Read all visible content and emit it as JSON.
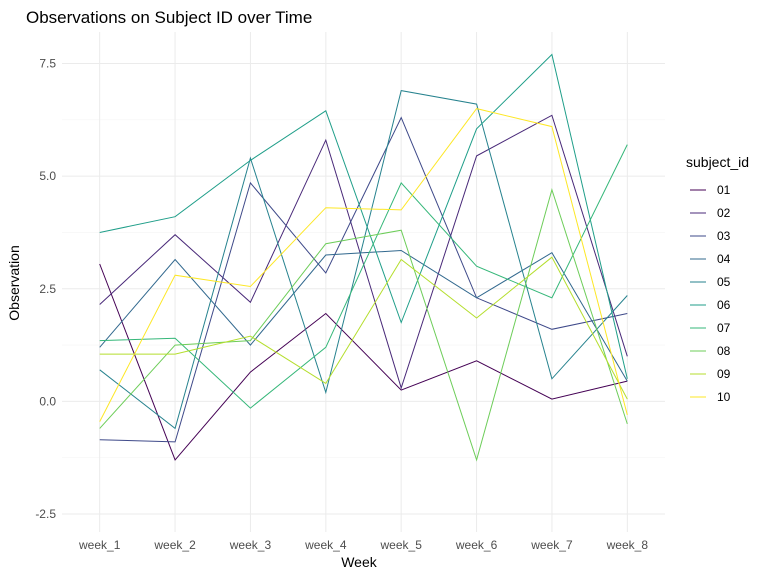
{
  "chart_data": {
    "type": "line",
    "title": "Observations on Subject ID over Time",
    "xlabel": "Week",
    "ylabel": "Observation",
    "categories": [
      "week_1",
      "week_2",
      "week_3",
      "week_4",
      "week_5",
      "week_6",
      "week_7",
      "week_8"
    ],
    "ylim": [
      -2.9,
      8.2
    ],
    "yticks": [
      -2.5,
      0,
      2.5,
      5,
      7.5
    ],
    "ytick_labels": [
      "-2.5",
      "0.0",
      "2.5",
      "5.0",
      "7.5"
    ],
    "grid": true,
    "legend_position": "right",
    "legend_title": "subject_id",
    "series": [
      {
        "name": "01",
        "color": "#440154",
        "values": [
          3.05,
          -1.3,
          0.65,
          1.95,
          0.25,
          0.9,
          0.05,
          0.45
        ]
      },
      {
        "name": "02",
        "color": "#482878",
        "values": [
          2.15,
          3.7,
          2.2,
          5.8,
          0.3,
          5.45,
          6.35,
          1.0
        ]
      },
      {
        "name": "03",
        "color": "#3E4989",
        "values": [
          -0.85,
          -0.9,
          4.85,
          2.85,
          6.3,
          2.3,
          1.6,
          1.95
        ]
      },
      {
        "name": "04",
        "color": "#31688E",
        "values": [
          1.2,
          3.15,
          1.25,
          3.25,
          3.35,
          2.3,
          3.3,
          0.45
        ]
      },
      {
        "name": "05",
        "color": "#26828E",
        "values": [
          0.7,
          -0.6,
          5.4,
          0.2,
          6.9,
          6.6,
          0.5,
          2.35
        ]
      },
      {
        "name": "06",
        "color": "#1F9E89",
        "values": [
          3.75,
          4.1,
          5.35,
          6.45,
          1.75,
          6.05,
          7.7,
          0.5
        ]
      },
      {
        "name": "07",
        "color": "#35B779",
        "values": [
          1.35,
          1.4,
          -0.15,
          1.2,
          4.85,
          3.0,
          2.3,
          5.7
        ]
      },
      {
        "name": "08",
        "color": "#6DCD59",
        "values": [
          -0.6,
          1.25,
          1.35,
          3.5,
          3.8,
          -1.3,
          4.7,
          -0.5
        ]
      },
      {
        "name": "09",
        "color": "#B4DE2C",
        "values": [
          1.05,
          1.05,
          1.45,
          0.4,
          3.15,
          1.85,
          3.2,
          0.05
        ]
      },
      {
        "name": "10",
        "color": "#FDE725",
        "values": [
          -0.45,
          2.8,
          2.55,
          4.3,
          4.25,
          6.5,
          6.1,
          -0.3
        ]
      }
    ]
  }
}
